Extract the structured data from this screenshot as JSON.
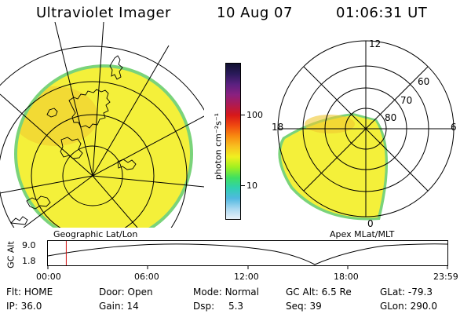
{
  "header": {
    "instrument": "Ultraviolet Imager",
    "date": "10 Aug 07",
    "time": "01:06:31  UT"
  },
  "colorbar": {
    "label": "photon cm⁻²s⁻¹",
    "ticks": [
      "100",
      "10"
    ],
    "colors": [
      "#101030",
      "#2a1a5a",
      "#5a2080",
      "#8a2080",
      "#b01a50",
      "#d81818",
      "#f04a10",
      "#f88a10",
      "#f8c020",
      "#f0f020",
      "#a0f020",
      "#40e060",
      "#30d0b0",
      "#50b8e0",
      "#a8d8f0",
      "#e8f0f8"
    ]
  },
  "left_map": {
    "label": "Geographic Lat/Lon",
    "fill_color": "#f4f03a",
    "edge_color": "#7ad37a",
    "hot_color": "#f0c830"
  },
  "right_map": {
    "label": "Apex MLat/MLT",
    "lat_labels": [
      "60",
      "70",
      "80"
    ],
    "mlt_labels": {
      "top": "12",
      "left": "18",
      "right": "6",
      "bottom": "0"
    }
  },
  "timeline": {
    "axis_label": "GC Alt",
    "y_ticks": [
      "9.0",
      "1.8"
    ],
    "x_ticks": [
      "00:00",
      "06:00",
      "12:00",
      "18:00",
      "23:59"
    ],
    "current_fraction": 0.046,
    "marker_color": "#d01010"
  },
  "info": {
    "row1": [
      {
        "label": "Flt:",
        "value": "HOME"
      },
      {
        "label": "Door:",
        "value": "Open"
      },
      {
        "label": "Mode:",
        "value": "Normal"
      },
      {
        "label": "GC Alt:",
        "value": "6.5 Re"
      },
      {
        "label": "GLat:",
        "value": "-79.3"
      }
    ],
    "row2": [
      {
        "label": "IP:",
        "value": "36.0"
      },
      {
        "label": "Gain:",
        "value": "14"
      },
      {
        "label": "Dsp:",
        "value": "5.3"
      },
      {
        "label": "Seq:",
        "value": "39"
      },
      {
        "label": "GLon:",
        "value": "290.0"
      }
    ]
  }
}
